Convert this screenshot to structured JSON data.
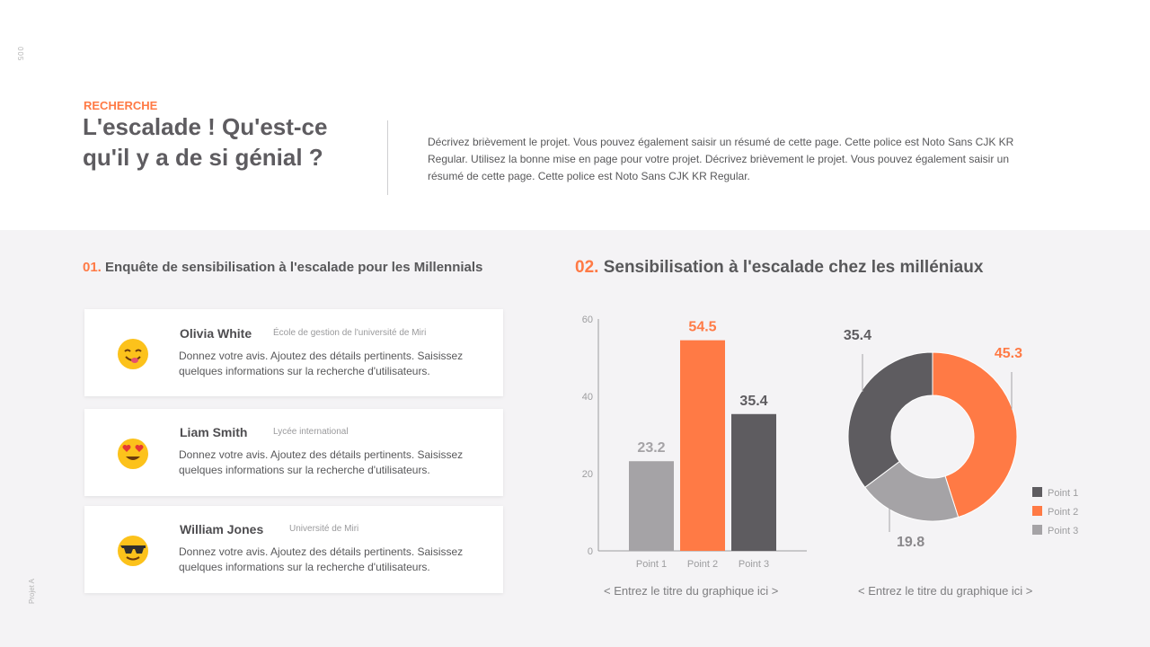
{
  "meta": {
    "page_number": "005",
    "footer_label": "Projet A"
  },
  "header": {
    "eyebrow": "RECHERCHE",
    "title": "L'escalade ! Qu'est-ce qu'il y a de si génial ?",
    "description": "Décrivez brièvement le projet. Vous pouvez également saisir un résumé de cette page. Cette police est Noto Sans CJK KR Regular. Utilisez la bonne mise en page pour votre projet. Décrivez brièvement le projet. Vous pouvez également saisir un résumé de cette page. Cette police est Noto Sans CJK KR Regular."
  },
  "section1": {
    "number": "01.",
    "title": "Enquête de sensibilisation à l'escalade pour les Millennials",
    "cards": [
      {
        "name": "Olivia White",
        "org": "École de gestion de l'université de Miri",
        "text": "Donnez votre avis. Ajoutez des détails pertinents. Saisissez quelques informations sur la recherche d'utilisateurs.",
        "emoji": "yum-emoji-icon"
      },
      {
        "name": "Liam Smith",
        "org": "Lycée international",
        "text": "Donnez votre avis. Ajoutez des détails pertinents. Saisissez quelques informations sur la recherche d'utilisateurs.",
        "emoji": "heart-eyes-emoji-icon"
      },
      {
        "name": "William Jones",
        "org": "Université de Miri",
        "text": "Donnez votre avis. Ajoutez des détails pertinents. Saisissez quelques informations sur la recherche d'utilisateurs.",
        "emoji": "sunglasses-emoji-icon"
      }
    ]
  },
  "section2": {
    "number": "02.",
    "title": "Sensibilisation à l'escalade chez les milléniaux",
    "bar_caption": "< Entrez le titre du graphique ici >",
    "donut_caption": "< Entrez le titre du graphique ici >"
  },
  "colors": {
    "accent": "#ff7a45",
    "dark_gray": "#5e5c60",
    "light_gray": "#a5a3a6"
  },
  "chart_data": [
    {
      "type": "bar",
      "categories": [
        "Point 1",
        "Point 2",
        "Point 3"
      ],
      "values": [
        23.2,
        54.5,
        35.4
      ],
      "colors": [
        "#a5a3a6",
        "#ff7a45",
        "#5e5c60"
      ],
      "yticks": [
        0,
        20,
        40,
        60
      ],
      "ylim": [
        0,
        60
      ],
      "data_labels": [
        "23.2",
        "54.5",
        "35.4"
      ]
    },
    {
      "type": "pie",
      "donut": true,
      "labels": [
        "Point 1",
        "Point 2",
        "Point 3"
      ],
      "values": [
        35.4,
        45.3,
        19.8
      ],
      "colors": [
        "#5e5c60",
        "#ff7a45",
        "#a5a3a6"
      ],
      "data_labels": [
        "35.4",
        "45.3",
        "19.8"
      ],
      "legend_position": "bottom-right"
    }
  ]
}
